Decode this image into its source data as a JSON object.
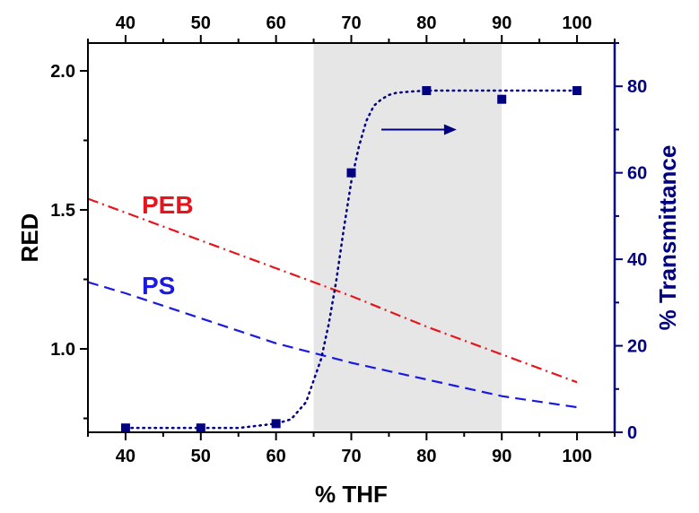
{
  "chart_data": {
    "type": "line",
    "xlabel": "% THF",
    "ylabel": "RED",
    "y2label": "% Transmittance",
    "xlim": [
      35,
      105
    ],
    "ylim": [
      0.7,
      2.1
    ],
    "y2lim": [
      0,
      90
    ],
    "x_ticks": [
      40,
      50,
      60,
      70,
      80,
      90,
      100
    ],
    "x_tick_labels": [
      "40",
      "50",
      "60",
      "70",
      "80",
      "90",
      "100"
    ],
    "y_ticks": [
      1.0,
      1.5,
      2.0
    ],
    "y_tick_labels": [
      "1.0",
      "1.5",
      "2.0"
    ],
    "y2_ticks": [
      0,
      20,
      40,
      60,
      80
    ],
    "y2_tick_labels": [
      "0",
      "20",
      "40",
      "60",
      "80"
    ],
    "shaded_region": {
      "x": [
        65,
        90
      ],
      "color": "#e6e6e6"
    },
    "series": [
      {
        "name": "PEB",
        "axis": "left",
        "style": "dash-dot",
        "color": "#e8141b",
        "x": [
          35,
          40,
          50,
          60,
          70,
          80,
          90,
          100
        ],
        "y": [
          1.54,
          1.49,
          1.39,
          1.29,
          1.19,
          1.08,
          0.98,
          0.88
        ]
      },
      {
        "name": "PS",
        "axis": "left",
        "style": "dashed",
        "color": "#1a1ae0",
        "x": [
          35,
          40,
          50,
          60,
          70,
          80,
          90,
          100
        ],
        "y": [
          1.24,
          1.2,
          1.11,
          1.02,
          0.95,
          0.89,
          0.83,
          0.79
        ]
      },
      {
        "axis": "right",
        "style": "dotted-fit",
        "color": "#000080",
        "x": [
          40,
          45,
          50,
          55,
          60,
          62,
          64,
          66,
          67,
          68,
          69,
          70,
          71,
          72,
          73,
          74,
          75,
          76,
          78,
          80,
          85,
          90,
          95,
          100
        ],
        "y": [
          1,
          1,
          1,
          1,
          2,
          3,
          7,
          17,
          25,
          35,
          47,
          58,
          66,
          72,
          75.5,
          77,
          78,
          78.5,
          78.8,
          79,
          79,
          79,
          79,
          79
        ]
      },
      {
        "axis": "right",
        "style": "markers",
        "marker": "square",
        "color": "#000080",
        "x": [
          40,
          50,
          60,
          70,
          80,
          90,
          100
        ],
        "y": [
          1,
          1,
          2,
          60,
          79,
          77,
          79
        ]
      }
    ],
    "annotations": [
      {
        "type": "arrow",
        "x": [
          74,
          84
        ],
        "y2": 70,
        "color": "#000080"
      }
    ],
    "grid": false
  }
}
